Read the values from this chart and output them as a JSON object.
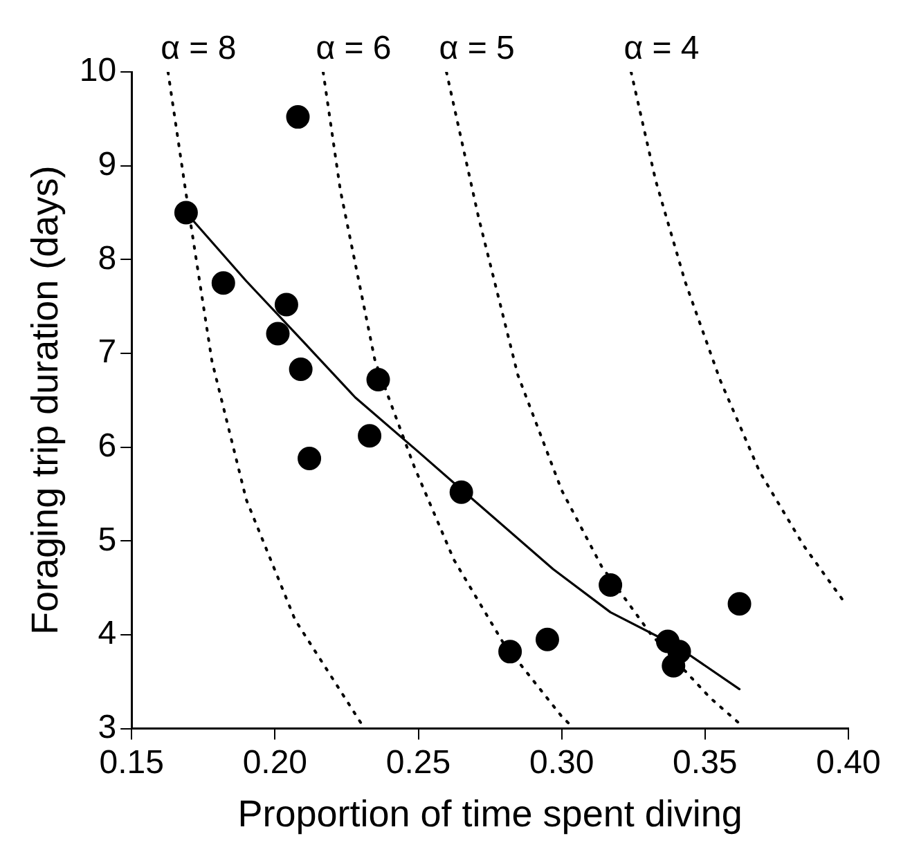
{
  "chart_data": {
    "type": "scatter",
    "xlabel": "Proportion of time spent diving",
    "ylabel": "Foraging trip duration (days)",
    "xlim": [
      0.15,
      0.4
    ],
    "ylim": [
      3,
      10
    ],
    "xticks": [
      0.15,
      {
        "value": 0.2,
        "label": "0.20"
      },
      0.25,
      {
        "value": 0.3,
        "label": "0.30"
      },
      0.35,
      {
        "value": 0.4,
        "label": "0.40"
      }
    ],
    "yticks": [
      3,
      4,
      5,
      6,
      7,
      8,
      9,
      10
    ],
    "series": [
      {
        "color": "#000000",
        "marker": "circle",
        "x": [
          0.169,
          0.208,
          0.182,
          0.204,
          0.201,
          0.209,
          0.236,
          0.212,
          0.233,
          0.265,
          0.317,
          0.282,
          0.295,
          0.362,
          0.337,
          0.341,
          0.339
        ],
        "values": [
          8.5,
          9.52,
          7.75,
          7.52,
          7.21,
          6.83,
          6.72,
          5.88,
          6.12,
          5.52,
          4.53,
          3.82,
          3.95,
          4.33,
          3.93,
          3.82,
          3.67
        ]
      },
      {
        "type": "line",
        "color": "#000000",
        "marker": "none",
        "line_style": "solid",
        "x": [
          0.169,
          0.19,
          0.21,
          0.228,
          0.25,
          0.265,
          0.297,
          0.317,
          0.34,
          0.362
        ],
        "values": [
          8.5,
          7.77,
          7.12,
          6.53,
          5.95,
          5.55,
          4.7,
          4.24,
          3.88,
          3.42
        ]
      },
      {
        "type": "line",
        "color": "#000000",
        "marker": "none",
        "line_style": "dotted",
        "x": [
          0.1627,
          0.1688,
          0.178,
          0.19,
          0.207,
          0.2306
        ],
        "values": [
          10,
          8.74,
          6.92,
          5.44,
          4.16,
          3.03
        ]
      },
      {
        "type": "line",
        "color": "#000000",
        "marker": "none",
        "line_style": "dotted",
        "x": [
          0.2168,
          0.2228,
          0.2349,
          0.2486,
          0.2624,
          0.2795,
          0.3,
          0.3043
        ],
        "values": [
          10,
          8.74,
          6.92,
          5.79,
          4.8,
          3.92,
          3.13,
          3
        ]
      },
      {
        "type": "line",
        "color": "#000000",
        "marker": "none",
        "line_style": "dotted",
        "x": [
          0.2598,
          0.271,
          0.2847,
          0.3,
          0.3139,
          0.331,
          0.3517,
          0.3629
        ],
        "values": [
          10,
          8.45,
          6.77,
          5.54,
          4.73,
          4.01,
          3.33,
          3.03
        ]
      },
      {
        "type": "line",
        "color": "#000000",
        "marker": "none",
        "line_style": "dotted",
        "x": [
          0.3242,
          0.3328,
          0.3431,
          0.3552,
          0.369,
          0.3844,
          0.399
        ],
        "values": [
          10,
          8.84,
          7.76,
          6.72,
          5.74,
          4.95,
          4.33
        ]
      }
    ],
    "annotations": [
      {
        "text": "α = 8",
        "x": 0.1627,
        "y": 10
      },
      {
        "text": "α = 6",
        "x": 0.2168,
        "y": 10
      },
      {
        "text": "α = 5",
        "x": 0.2598,
        "y": 10
      },
      {
        "text": "α = 4",
        "x": 0.3242,
        "y": 10
      }
    ]
  }
}
